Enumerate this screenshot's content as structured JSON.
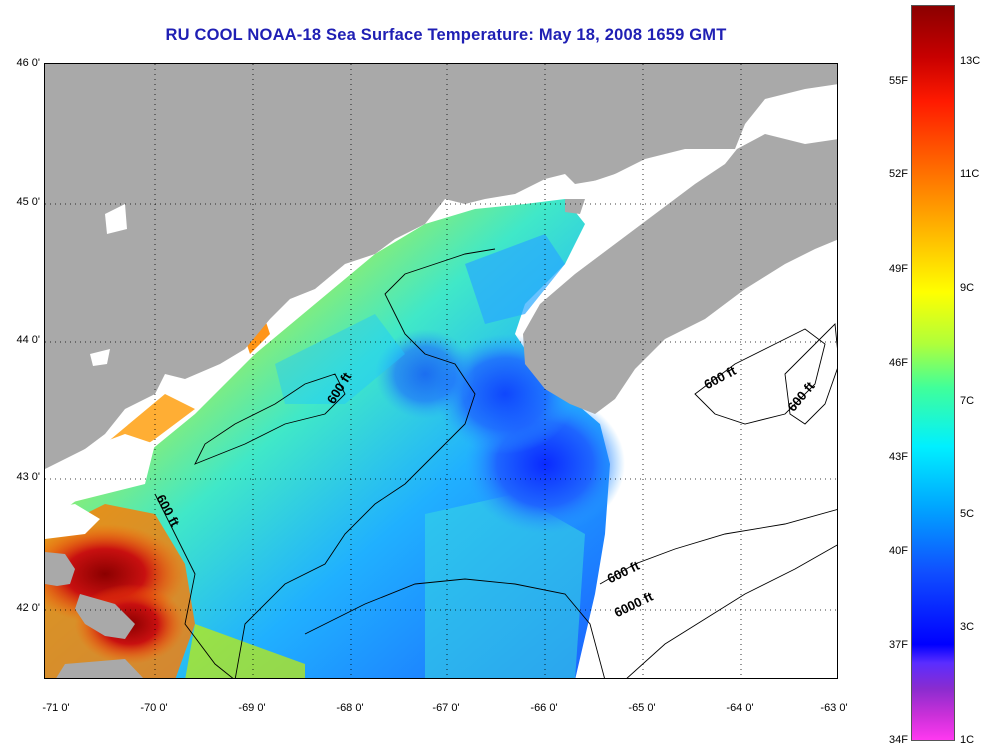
{
  "title": "RU COOL  NOAA-18  Sea Surface Temperature:  May 18, 2008 1659 GMT",
  "latitude_labels": [
    "46 0'",
    "45 0'",
    "44 0'",
    "43 0'",
    "42 0'"
  ],
  "longitude_labels": [
    "-71 0'",
    "-70 0'",
    "-69 0'",
    "-68 0'",
    "-67 0'",
    "-66 0'",
    "-65 0'",
    "-64 0'",
    "-63 0'"
  ],
  "contour_labels": [
    "600 ft",
    "600 ft",
    "600 ft",
    "600 ft",
    "6000 ft",
    "600 ft"
  ],
  "colorbar": {
    "fahrenheit": [
      "55F",
      "52F",
      "49F",
      "46F",
      "43F",
      "40F",
      "37F",
      "34F"
    ],
    "celsius": [
      "13C",
      "11C",
      "9C",
      "7C",
      "5C",
      "3C",
      "1C"
    ]
  },
  "colors": {
    "title": "#1f1fb4",
    "land": "#a9a9a9",
    "ocean_no_data": "#ffffff"
  },
  "map_extent": {
    "lon_min": -71,
    "lon_max": -63,
    "lat_min": 41.5,
    "lat_max": 46
  }
}
